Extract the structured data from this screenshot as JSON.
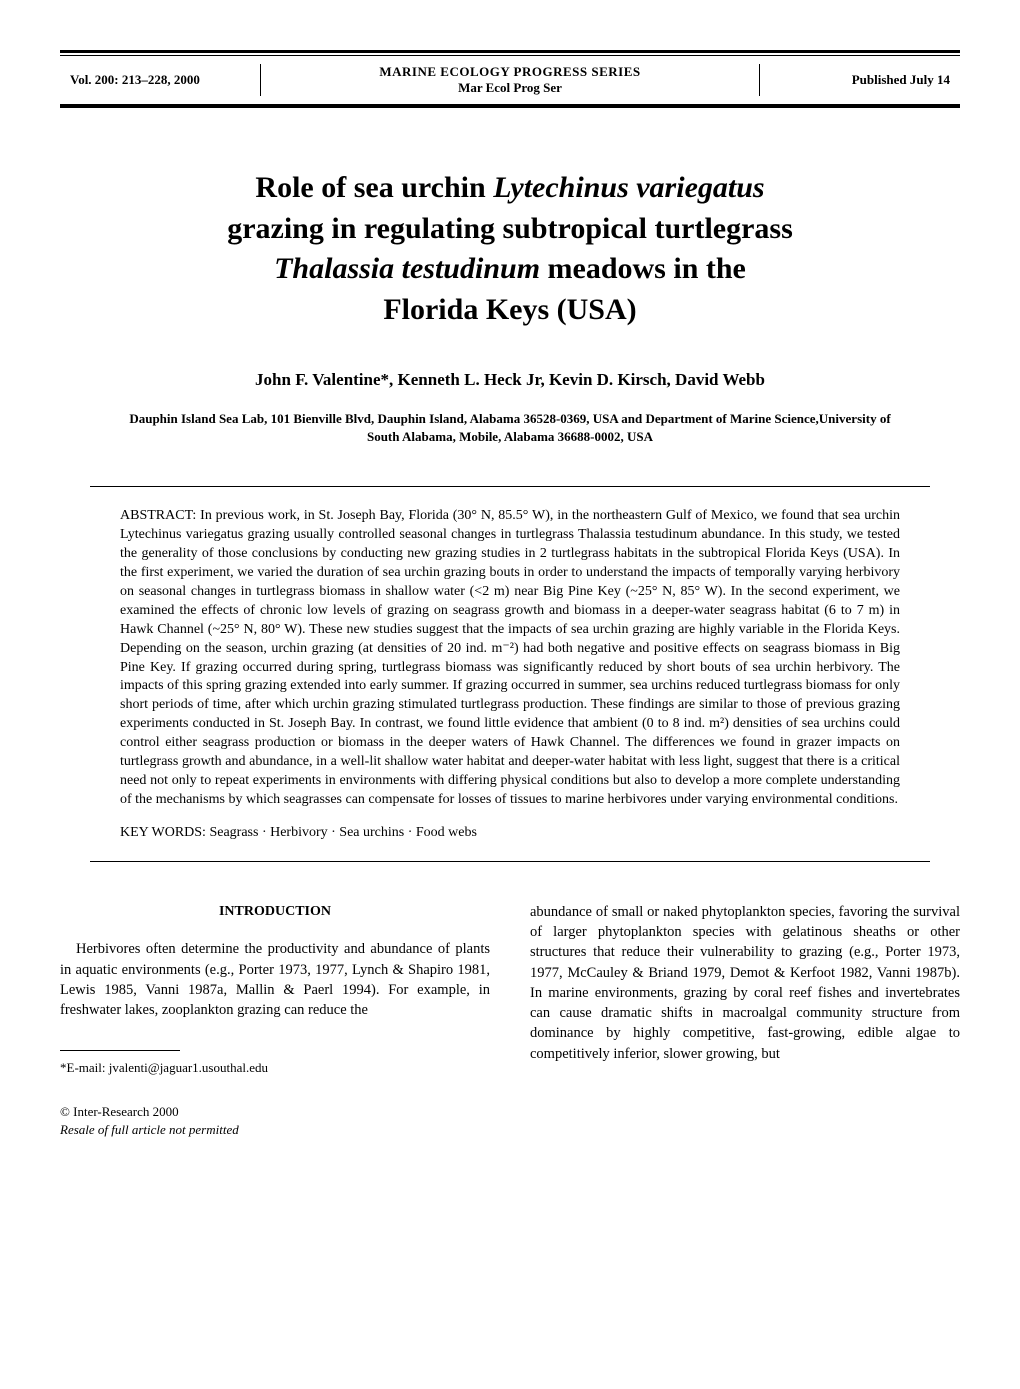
{
  "header": {
    "volume_info": "Vol. 200: 213–228, 2000",
    "journal_name": "MARINE ECOLOGY PROGRESS SERIES",
    "journal_abbrev": "Mar Ecol Prog Ser",
    "published": "Published July 14"
  },
  "title": {
    "line1_pre": "Role of sea urchin ",
    "line1_italic": "Lytechinus variegatus",
    "line2": "grazing in regulating subtropical turtlegrass",
    "line3_italic": "Thalassia testudinum",
    "line3_post": " meadows in the",
    "line4": "Florida Keys (USA)"
  },
  "authors": "John F. Valentine*, Kenneth L. Heck Jr, Kevin D. Kirsch, David Webb",
  "affiliation": "Dauphin Island Sea Lab, 101 Bienville Blvd, Dauphin Island, Alabama 36528-0369, USA and Department of Marine Science,University of South Alabama, Mobile, Alabama 36688-0002, USA",
  "abstract": {
    "label": "ABSTRACT: ",
    "text": "In previous work, in St. Joseph Bay, Florida (30° N, 85.5° W), in the northeastern Gulf of Mexico, we found that sea urchin Lytechinus variegatus grazing usually controlled seasonal changes in turtlegrass Thalassia testudinum abundance. In this study, we tested the generality of those conclusions by conducting new grazing studies in 2 turtlegrass habitats in the subtropical Florida Keys (USA). In the first experiment, we varied the duration of sea urchin grazing bouts in order to understand the impacts of temporally varying herbivory on seasonal changes in turtlegrass biomass in shallow water (<2 m) near Big Pine Key (~25° N, 85° W). In the second experiment, we examined the effects of chronic low levels of grazing on seagrass growth and biomass in a deeper-water seagrass habitat (6 to 7 m) in Hawk Channel (~25° N, 80° W). These new studies suggest that the impacts of sea urchin grazing are highly variable in the Florida Keys. Depending on the season, urchin grazing (at densities of 20 ind. m⁻²) had both negative and positive effects on seagrass biomass in Big Pine Key. If grazing occurred during spring, turtlegrass biomass was significantly reduced by short bouts of sea urchin herbivory. The impacts of this spring grazing extended into early summer. If grazing occurred in summer, sea urchins reduced turtlegrass biomass for only short periods of time, after which urchin grazing stimulated turtlegrass production. These findings are similar to those of previous grazing experiments conducted in St. Joseph Bay. In contrast, we found little evidence that ambient (0 to 8 ind. m²) densities of sea urchins could control either seagrass production or biomass in the deeper waters of Hawk Channel. The differences we found in grazer impacts on turtlegrass growth and abundance, in a well-lit shallow water habitat and deeper-water habitat with less light, suggest that there is a critical need not only to repeat experiments in environments with differing physical conditions but also to develop a more complete understanding of the mechanisms by which seagrasses can compensate for losses of tissues to marine herbivores under varying environmental conditions."
  },
  "keywords": {
    "label": "KEY WORDS:  ",
    "text": "Seagrass · Herbivory · Sea urchins · Food webs"
  },
  "body": {
    "intro_heading": "INTRODUCTION",
    "col1_para1": "Herbivores often determine the productivity and abundance of plants in aquatic environments (e.g., Porter 1973, 1977, Lynch & Shapiro 1981, Lewis 1985, Vanni 1987a, Mallin & Paerl 1994). For example, in freshwater lakes, zooplankton grazing can reduce the",
    "col2_para1": "abundance of small or naked phytoplankton species, favoring the survival of larger phytoplankton species with gelatinous sheaths or other structures that reduce their vulnerability to grazing (e.g., Porter 1973, 1977, McCauley & Briand 1979, Demot & Kerfoot 1982, Vanni 1987b). In marine environments, grazing by coral reef fishes and invertebrates can cause dramatic shifts in macroalgal community structure from dominance by highly competitive, fast-growing, edible algae to competitively inferior, slower growing, but"
  },
  "footnote": "*E-mail: jvalenti@jaguar1.usouthal.edu",
  "copyright": {
    "line1": "© Inter-Research 2000",
    "line2": "Resale of full article not permitted"
  }
}
